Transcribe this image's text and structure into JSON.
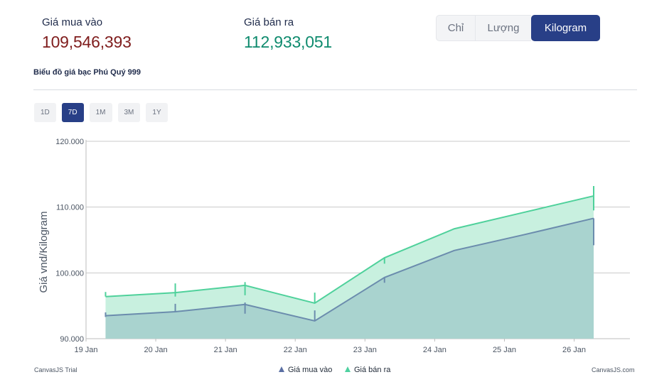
{
  "prices": {
    "buy_label": "Giá mua vào",
    "buy_value": "109,546,393",
    "buy_color": "#7f1d1d",
    "sell_label": "Giá bán ra",
    "sell_value": "112,933,051",
    "sell_color": "#0f8b6e"
  },
  "unit_tabs": [
    "Chỉ",
    "Lượng",
    "Kilogram"
  ],
  "unit_active": "Kilogram",
  "chart_title": "Biểu đồ giá bạc Phú Quý 999",
  "ranges": [
    "1D",
    "7D",
    "1M",
    "3M",
    "1Y"
  ],
  "range_active": "7D",
  "credits": {
    "left": "CanvasJS Trial",
    "right": "CanvasJS.com"
  },
  "chart_data": {
    "type": "area",
    "x_unit": "day",
    "x_ticks": [
      "19 Jan",
      "20 Jan",
      "21 Jan",
      "22 Jan",
      "23 Jan",
      "24 Jan",
      "25 Jan",
      "26 Jan"
    ],
    "x_range": [
      19,
      26.8
    ],
    "x": [
      19.28,
      20.28,
      21.28,
      22.28,
      23.28,
      24.28,
      25.28,
      26.28
    ],
    "ylabel": "Giá vnd/Kilogram",
    "ylim": [
      90000,
      120000
    ],
    "y_ticks": [
      "90.000",
      "100.000",
      "110.000",
      "120.000"
    ],
    "grid": true,
    "legend_position": "bottom-center",
    "series": [
      {
        "name": "Giá mua vào",
        "color": "#6b8cad",
        "fill": "#a9d3cf",
        "values": [
          93500,
          94100,
          95200,
          92700,
          99300,
          103400,
          105800,
          108300
        ]
      },
      {
        "name": "Giá bán ra",
        "color": "#4fd19b",
        "fill": "#c8f0df",
        "values": [
          96400,
          97000,
          98100,
          95400,
          102300,
          106700,
          109200,
          111700
        ]
      }
    ],
    "markers": [
      {
        "series": 0,
        "index": 0,
        "low": 93300,
        "high": 94000
      },
      {
        "series": 0,
        "index": 1,
        "low": 94100,
        "high": 95300
      },
      {
        "series": 0,
        "index": 2,
        "low": 93800,
        "high": 95500
      },
      {
        "series": 0,
        "index": 3,
        "low": 92700,
        "high": 94300
      },
      {
        "series": 0,
        "index": 4,
        "low": 98500,
        "high": 99300
      },
      {
        "series": 0,
        "index": 7,
        "low": 104200,
        "high": 108300
      },
      {
        "series": 1,
        "index": 0,
        "low": 96400,
        "high": 97100
      },
      {
        "series": 1,
        "index": 1,
        "low": 96400,
        "high": 98400
      },
      {
        "series": 1,
        "index": 2,
        "low": 96600,
        "high": 98600
      },
      {
        "series": 1,
        "index": 3,
        "low": 95400,
        "high": 97000
      },
      {
        "series": 1,
        "index": 4,
        "low": 101400,
        "high": 102300
      },
      {
        "series": 1,
        "index": 7,
        "low": 109500,
        "high": 113200
      }
    ]
  }
}
